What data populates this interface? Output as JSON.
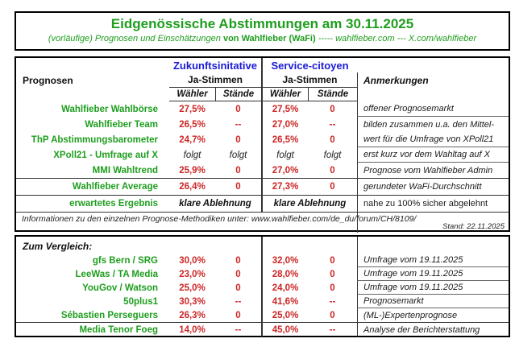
{
  "colors": {
    "green": "#1e9e1e",
    "red": "#cc2626",
    "blue": "#1b1bd6"
  },
  "title_box": {
    "title": "Eidgenössische Abstimmungen am 30.11.2025",
    "subtitle_prefix": "(vorläufige) Prognosen und Einschätzungen",
    "subtitle_brand": "von Wahlfieber (WaFi)",
    "subtitle_links": "----- wahlfieber.com --- X.com/wahlfieber"
  },
  "table_head": {
    "group1": "Zukunftsinitative",
    "group2": "Service-citoyen",
    "prognosen": "Prognosen",
    "ja_stimmen": "Ja-Stimmen",
    "anmerkungen": "Anmerkungen",
    "waehler": "Wähler",
    "staende": "Stände"
  },
  "upper_rows": [
    {
      "label": "Wahlfieber Wahlbörse",
      "zi_w": "27,5%",
      "zi_s": "0",
      "sc_w": "27,5%",
      "sc_s": "0",
      "note": "offener Prognosemarkt"
    },
    {
      "label": "Wahlfieber Team",
      "zi_w": "26,5%",
      "zi_s": "--",
      "sc_w": "27,0%",
      "sc_s": "--",
      "note": "bilden zusammen u.a. den Mittel-"
    },
    {
      "label": "ThP Abstimmungsbarometer",
      "zi_w": "24,7%",
      "zi_s": "0",
      "sc_w": "26,5%",
      "sc_s": "0",
      "note": "wert für die Umfrage von XPoll21"
    },
    {
      "label": "XPoll21 - Umfrage auf X",
      "zi_w": "folgt",
      "zi_s": "folgt",
      "sc_w": "folgt",
      "sc_s": "folgt",
      "note": "erst kurz vor dem Wahltag auf X"
    },
    {
      "label": "MMI Wahltrend",
      "zi_w": "25,9%",
      "zi_s": "0",
      "sc_w": "27,0%",
      "sc_s": "0",
      "note": "Prognose vom Wahlfieber Admin"
    }
  ],
  "average_row": {
    "label": "Wahlfieber Average",
    "zi_w": "26,4%",
    "zi_s": "0",
    "sc_w": "27,3%",
    "sc_s": "0",
    "note": "gerundeter WaFi-Durchschnitt"
  },
  "expected_row": {
    "label": "erwartetes Ergebnis",
    "zi": "klare Ablehnung",
    "sc": "klare Ablehnung",
    "note": "nahe zu 100% sicher abgelehnt"
  },
  "info_row": {
    "text": "Informationen zu den einzelnen Prognose-Methodiken unter: www.wahlfieber.com/de_du/forum/CH/8109/",
    "stand": "Stand: 22.11.2025"
  },
  "compare": {
    "header": "Zum Vergleich:",
    "rows": [
      {
        "label": "gfs Bern / SRG",
        "zi_w": "30,0%",
        "zi_s": "0",
        "sc_w": "32,0%",
        "sc_s": "0",
        "note": "Umfrage vom 19.11.2025"
      },
      {
        "label": "LeeWas / TA Media",
        "zi_w": "23,0%",
        "zi_s": "0",
        "sc_w": "28,0%",
        "sc_s": "0",
        "note": "Umfrage vom 19.11.2025"
      },
      {
        "label": "YouGov / Watson",
        "zi_w": "25,0%",
        "zi_s": "0",
        "sc_w": "24,0%",
        "sc_s": "0",
        "note": "Umfrage vom 19.11.2025"
      },
      {
        "label": "50plus1",
        "zi_w": "30,3%",
        "zi_s": "--",
        "sc_w": "41,6%",
        "sc_s": "--",
        "note": "Prognosemarkt"
      },
      {
        "label": "Sébastien Perseguers",
        "zi_w": "26,3%",
        "zi_s": "0",
        "sc_w": "25,0%",
        "sc_s": "0",
        "note": "(ML-)Expertenprognose"
      },
      {
        "label": "Media Tenor Foeg",
        "zi_w": "14,0%",
        "zi_s": "--",
        "sc_w": "45,0%",
        "sc_s": "--",
        "note": "Analyse der Berichterstattung"
      }
    ]
  }
}
